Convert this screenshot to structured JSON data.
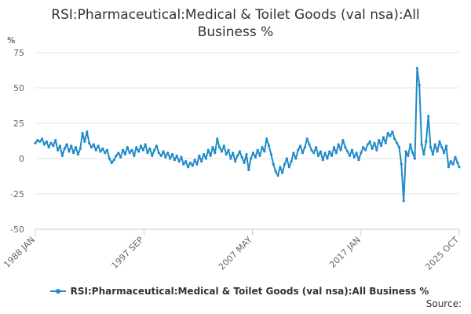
{
  "chart_data": {
    "type": "line",
    "title": "RSI:Pharmaceutical:Medical & Toilet Goods (val nsa):All Business %",
    "ylabel": "%",
    "xlabel": "",
    "ylim": [
      -50,
      75
    ],
    "yticks": [
      75,
      50,
      25,
      0,
      -25,
      -50
    ],
    "xlim": [
      1988.0,
      2025.75
    ],
    "xticks": [
      {
        "label": "1988 JAN",
        "x": 1988.0
      },
      {
        "label": "1997 SEP",
        "x": 1997.67
      },
      {
        "label": "2007 MAY",
        "x": 2007.33
      },
      {
        "label": "2017 JAN",
        "x": 2017.0
      },
      {
        "label": "2025 OCT",
        "x": 2025.75
      }
    ],
    "grid": true,
    "legend_position": "bottom",
    "series": [
      {
        "name": "RSI:Pharmaceutical:Medical & Toilet Goods (val nsa):All Business %",
        "color": "#1f8ac8",
        "points": [
          [
            1988.0,
            11
          ],
          [
            1988.2,
            13
          ],
          [
            1988.4,
            12
          ],
          [
            1988.6,
            14
          ],
          [
            1988.8,
            10
          ],
          [
            1989.0,
            12
          ],
          [
            1989.2,
            8
          ],
          [
            1989.4,
            11
          ],
          [
            1989.6,
            9
          ],
          [
            1989.8,
            13
          ],
          [
            1990.0,
            6
          ],
          [
            1990.2,
            9
          ],
          [
            1990.4,
            2
          ],
          [
            1990.6,
            7
          ],
          [
            1990.8,
            10
          ],
          [
            1991.0,
            5
          ],
          [
            1991.2,
            9
          ],
          [
            1991.4,
            4
          ],
          [
            1991.6,
            8
          ],
          [
            1991.8,
            3
          ],
          [
            1992.0,
            7
          ],
          [
            1992.2,
            18
          ],
          [
            1992.4,
            12
          ],
          [
            1992.6,
            19
          ],
          [
            1992.8,
            11
          ],
          [
            1993.0,
            8
          ],
          [
            1993.2,
            10
          ],
          [
            1993.4,
            6
          ],
          [
            1993.6,
            9
          ],
          [
            1993.8,
            5
          ],
          [
            1994.0,
            7
          ],
          [
            1994.2,
            4
          ],
          [
            1994.4,
            6
          ],
          [
            1994.6,
            0
          ],
          [
            1994.8,
            -3
          ],
          [
            1995.0,
            -1
          ],
          [
            1995.2,
            2
          ],
          [
            1995.4,
            4
          ],
          [
            1995.6,
            1
          ],
          [
            1995.8,
            6
          ],
          [
            1996.0,
            3
          ],
          [
            1996.2,
            8
          ],
          [
            1996.4,
            4
          ],
          [
            1996.6,
            6
          ],
          [
            1996.8,
            2
          ],
          [
            1997.0,
            8
          ],
          [
            1997.2,
            5
          ],
          [
            1997.4,
            9
          ],
          [
            1997.6,
            6
          ],
          [
            1997.8,
            10
          ],
          [
            1998.0,
            4
          ],
          [
            1998.2,
            7
          ],
          [
            1998.4,
            2
          ],
          [
            1998.6,
            6
          ],
          [
            1998.8,
            9
          ],
          [
            1999.0,
            4
          ],
          [
            1999.2,
            2
          ],
          [
            1999.4,
            5
          ],
          [
            1999.6,
            1
          ],
          [
            1999.8,
            4
          ],
          [
            2000.0,
            0
          ],
          [
            2000.2,
            3
          ],
          [
            2000.4,
            -1
          ],
          [
            2000.6,
            2
          ],
          [
            2000.8,
            -2
          ],
          [
            2001.0,
            1
          ],
          [
            2001.2,
            -4
          ],
          [
            2001.4,
            -2
          ],
          [
            2001.6,
            -6
          ],
          [
            2001.8,
            -3
          ],
          [
            2002.0,
            -5
          ],
          [
            2002.2,
            -1
          ],
          [
            2002.4,
            -4
          ],
          [
            2002.6,
            2
          ],
          [
            2002.8,
            -2
          ],
          [
            2003.0,
            3
          ],
          [
            2003.2,
            0
          ],
          [
            2003.4,
            6
          ],
          [
            2003.6,
            2
          ],
          [
            2003.8,
            8
          ],
          [
            2004.0,
            4
          ],
          [
            2004.2,
            14
          ],
          [
            2004.4,
            8
          ],
          [
            2004.6,
            5
          ],
          [
            2004.8,
            9
          ],
          [
            2005.0,
            3
          ],
          [
            2005.2,
            6
          ],
          [
            2005.4,
            0
          ],
          [
            2005.6,
            4
          ],
          [
            2005.8,
            -2
          ],
          [
            2006.0,
            2
          ],
          [
            2006.2,
            5
          ],
          [
            2006.4,
            1
          ],
          [
            2006.6,
            -3
          ],
          [
            2006.8,
            3
          ],
          [
            2007.0,
            -8
          ],
          [
            2007.2,
            0
          ],
          [
            2007.4,
            4
          ],
          [
            2007.6,
            1
          ],
          [
            2007.8,
            6
          ],
          [
            2008.0,
            2
          ],
          [
            2008.2,
            8
          ],
          [
            2008.4,
            5
          ],
          [
            2008.6,
            14
          ],
          [
            2008.8,
            9
          ],
          [
            2009.0,
            3
          ],
          [
            2009.2,
            -4
          ],
          [
            2009.4,
            -9
          ],
          [
            2009.6,
            -12
          ],
          [
            2009.8,
            -6
          ],
          [
            2010.0,
            -10
          ],
          [
            2010.2,
            -4
          ],
          [
            2010.4,
            0
          ],
          [
            2010.6,
            -6
          ],
          [
            2010.8,
            -2
          ],
          [
            2011.0,
            4
          ],
          [
            2011.2,
            0
          ],
          [
            2011.4,
            6
          ],
          [
            2011.6,
            9
          ],
          [
            2011.8,
            4
          ],
          [
            2012.0,
            8
          ],
          [
            2012.2,
            14
          ],
          [
            2012.4,
            10
          ],
          [
            2012.6,
            6
          ],
          [
            2012.8,
            4
          ],
          [
            2013.0,
            8
          ],
          [
            2013.2,
            2
          ],
          [
            2013.4,
            5
          ],
          [
            2013.6,
            -1
          ],
          [
            2013.8,
            4
          ],
          [
            2014.0,
            0
          ],
          [
            2014.2,
            5
          ],
          [
            2014.4,
            2
          ],
          [
            2014.6,
            8
          ],
          [
            2014.8,
            4
          ],
          [
            2015.0,
            10
          ],
          [
            2015.2,
            6
          ],
          [
            2015.4,
            13
          ],
          [
            2015.6,
            8
          ],
          [
            2015.8,
            5
          ],
          [
            2016.0,
            2
          ],
          [
            2016.2,
            6
          ],
          [
            2016.4,
            1
          ],
          [
            2016.6,
            4
          ],
          [
            2016.8,
            -1
          ],
          [
            2017.0,
            4
          ],
          [
            2017.2,
            8
          ],
          [
            2017.4,
            6
          ],
          [
            2017.6,
            10
          ],
          [
            2017.8,
            12
          ],
          [
            2018.0,
            7
          ],
          [
            2018.2,
            11
          ],
          [
            2018.4,
            6
          ],
          [
            2018.6,
            13
          ],
          [
            2018.8,
            9
          ],
          [
            2019.0,
            15
          ],
          [
            2019.2,
            11
          ],
          [
            2019.4,
            18
          ],
          [
            2019.6,
            16
          ],
          [
            2019.8,
            19
          ],
          [
            2020.0,
            14
          ],
          [
            2020.2,
            11
          ],
          [
            2020.4,
            8
          ],
          [
            2020.6,
            -4
          ],
          [
            2020.8,
            -30
          ],
          [
            2021.0,
            5
          ],
          [
            2021.2,
            2
          ],
          [
            2021.4,
            10
          ],
          [
            2021.6,
            4
          ],
          [
            2021.8,
            0
          ],
          [
            2022.0,
            64
          ],
          [
            2022.2,
            52
          ],
          [
            2022.4,
            10
          ],
          [
            2022.6,
            3
          ],
          [
            2022.8,
            12
          ],
          [
            2023.0,
            30
          ],
          [
            2023.2,
            8
          ],
          [
            2023.4,
            3
          ],
          [
            2023.6,
            10
          ],
          [
            2023.8,
            5
          ],
          [
            2024.0,
            12
          ],
          [
            2024.2,
            8
          ],
          [
            2024.4,
            4
          ],
          [
            2024.6,
            9
          ],
          [
            2024.8,
            -6
          ],
          [
            2025.0,
            -2
          ],
          [
            2025.2,
            -4
          ],
          [
            2025.4,
            1
          ],
          [
            2025.6,
            -3
          ],
          [
            2025.75,
            -6
          ]
        ]
      }
    ]
  },
  "source_label": "Source:"
}
